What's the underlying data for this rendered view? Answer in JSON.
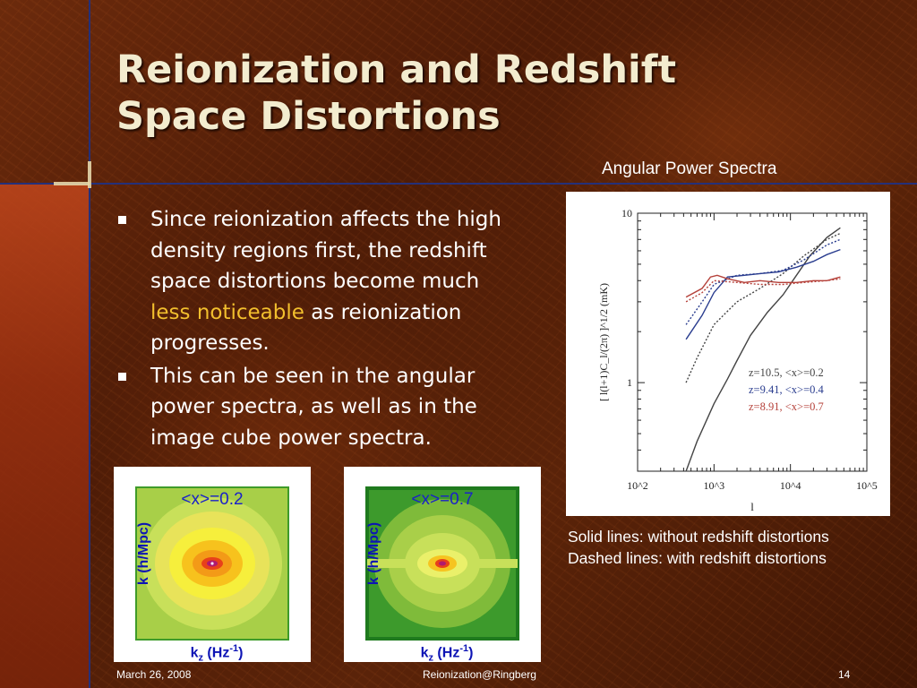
{
  "title": {
    "line1": "Reionization and Redshift",
    "line2": "Space Distortions"
  },
  "bullets": {
    "b1_part1": "Since reionization affects the high density regions first, the redshift space distortions become much ",
    "b1_highlight": "less noticeable",
    "b1_part2": " as reionization progresses.",
    "b2": "This can be seen in the angular power spectra, as well as in the image cube power spectra."
  },
  "aps_heading": "Angular Power Spectra",
  "legend_note": {
    "line1": "Solid lines: without redshift distortions",
    "line2": "Dashed lines: with redshift distortions"
  },
  "cubes": {
    "left": {
      "label": "<x>=0.2",
      "ylabel": "k (h/Mpc)",
      "xlabel_main": "k",
      "xlabel_sub": "z",
      "xlabel_rest": " (Hz",
      "xlabel_sup": "-1",
      "xlabel_end": ")"
    },
    "right": {
      "label": "<x>=0.7",
      "ylabel": "k (h/Mpc)",
      "xlabel_main": "k",
      "xlabel_sub": "z",
      "xlabel_rest": " (Hz",
      "xlabel_sup": "-1",
      "xlabel_end": ")"
    }
  },
  "footer": {
    "date": "March 26, 2008",
    "center": "Reionization@Ringberg",
    "page": "14"
  },
  "colors": {
    "title": "#f3eccf",
    "highlight": "#f2bf2e",
    "rule": "#24307a",
    "cube_label": "#1a22c8"
  },
  "chart_data": {
    "type": "line",
    "ylabel": "[ l(l+1)C_l/(2π) ]^1/2 (mK)",
    "xlabel": "l",
    "xscale": "log",
    "yscale": "log",
    "xlim": [
      100,
      100000
    ],
    "ylim": [
      0.3,
      10
    ],
    "x_ticks": [
      "10^2",
      "10^3",
      "10^4",
      "10^5"
    ],
    "y_ticks": [
      "1",
      "10"
    ],
    "legend_placement": "lower-right",
    "series": [
      {
        "name": "z=10.5, <x>=0.2",
        "color": "#444444",
        "style": "solid",
        "x": [
          430,
          600,
          1000,
          1500,
          2000,
          3000,
          5000,
          8000,
          12000,
          18000,
          30000,
          45000
        ],
        "y": [
          0.3,
          0.45,
          0.75,
          1.05,
          1.35,
          1.9,
          2.6,
          3.3,
          4.3,
          5.6,
          7.2,
          8.2
        ]
      },
      {
        "name": "z=10.5, <x>=0.2 (with distortions)",
        "color": "#444444",
        "style": "dashed",
        "x": [
          430,
          600,
          1000,
          2000,
          4000,
          8000,
          15000,
          30000,
          45000
        ],
        "y": [
          1.0,
          1.4,
          2.2,
          3.0,
          3.6,
          4.4,
          5.6,
          7.0,
          7.6
        ]
      },
      {
        "name": "z=9.41, <x>=0.4",
        "color": "#2a3d8f",
        "style": "solid",
        "x": [
          430,
          700,
          1000,
          1500,
          2500,
          4000,
          7000,
          12000,
          20000,
          30000,
          45000
        ],
        "y": [
          1.8,
          2.5,
          3.4,
          4.2,
          4.3,
          4.4,
          4.5,
          4.8,
          5.2,
          5.7,
          6.1
        ]
      },
      {
        "name": "z=9.41, <x>=0.4 (with distortions)",
        "color": "#2a3d8f",
        "style": "dashed",
        "x": [
          430,
          700,
          1000,
          2000,
          4000,
          8000,
          15000,
          30000,
          45000
        ],
        "y": [
          2.2,
          3.0,
          3.8,
          4.3,
          4.4,
          4.6,
          5.3,
          6.5,
          7.0
        ]
      },
      {
        "name": "z=8.91, <x>=0.7",
        "color": "#b5413a",
        "style": "solid",
        "x": [
          430,
          700,
          900,
          1100,
          1500,
          2500,
          4000,
          7000,
          12000,
          20000,
          30000,
          45000
        ],
        "y": [
          3.2,
          3.6,
          4.2,
          4.3,
          4.1,
          3.9,
          4.0,
          3.9,
          3.9,
          4.0,
          4.0,
          4.2
        ]
      },
      {
        "name": "z=8.91, <x>=0.7 (with distortions)",
        "color": "#b5413a",
        "style": "dashed",
        "x": [
          430,
          700,
          1000,
          2000,
          4000,
          8000,
          15000,
          30000,
          45000
        ],
        "y": [
          3.0,
          3.4,
          4.0,
          3.9,
          3.8,
          3.8,
          3.9,
          4.0,
          4.1
        ]
      }
    ]
  }
}
